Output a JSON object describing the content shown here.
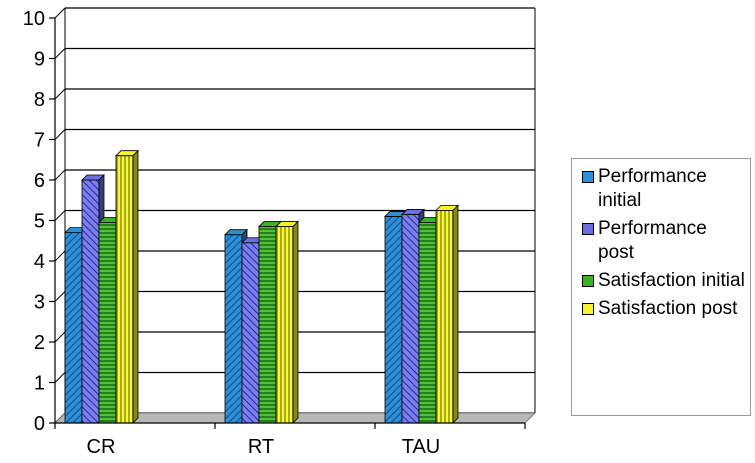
{
  "chart_data": {
    "type": "bar",
    "categories": [
      "CR",
      "RT",
      "TAU"
    ],
    "ylim": [
      0,
      10
    ],
    "yticks": [
      0,
      1,
      2,
      3,
      4,
      5,
      6,
      7,
      8,
      9,
      10
    ],
    "grid": true,
    "legend_position": "right",
    "series": [
      {
        "name": "Performance initial",
        "color": "#2e8fd6",
        "pattern": "diagonal",
        "values": [
          4.7,
          4.65,
          5.1
        ]
      },
      {
        "name": "Performance post",
        "color": "#6b6fe0",
        "pattern": "diagonal-cross",
        "values": [
          6.0,
          4.45,
          5.15
        ]
      },
      {
        "name": "Satisfaction initial",
        "color": "#3fae2a",
        "pattern": "horizontal",
        "values": [
          4.95,
          4.85,
          4.95
        ]
      },
      {
        "name": "Satisfaction post",
        "color": "#f4f42e",
        "pattern": "vertical",
        "values": [
          6.6,
          4.85,
          5.25
        ]
      }
    ]
  },
  "legend": {
    "items": [
      {
        "label": "Performance initial",
        "color": "#2e8fd6"
      },
      {
        "label": "Performance post",
        "color": "#6b6fe0"
      },
      {
        "label": "Satisfaction initial",
        "color": "#3fae2a"
      },
      {
        "label": "Satisfaction post",
        "color": "#f4f42e"
      }
    ]
  }
}
